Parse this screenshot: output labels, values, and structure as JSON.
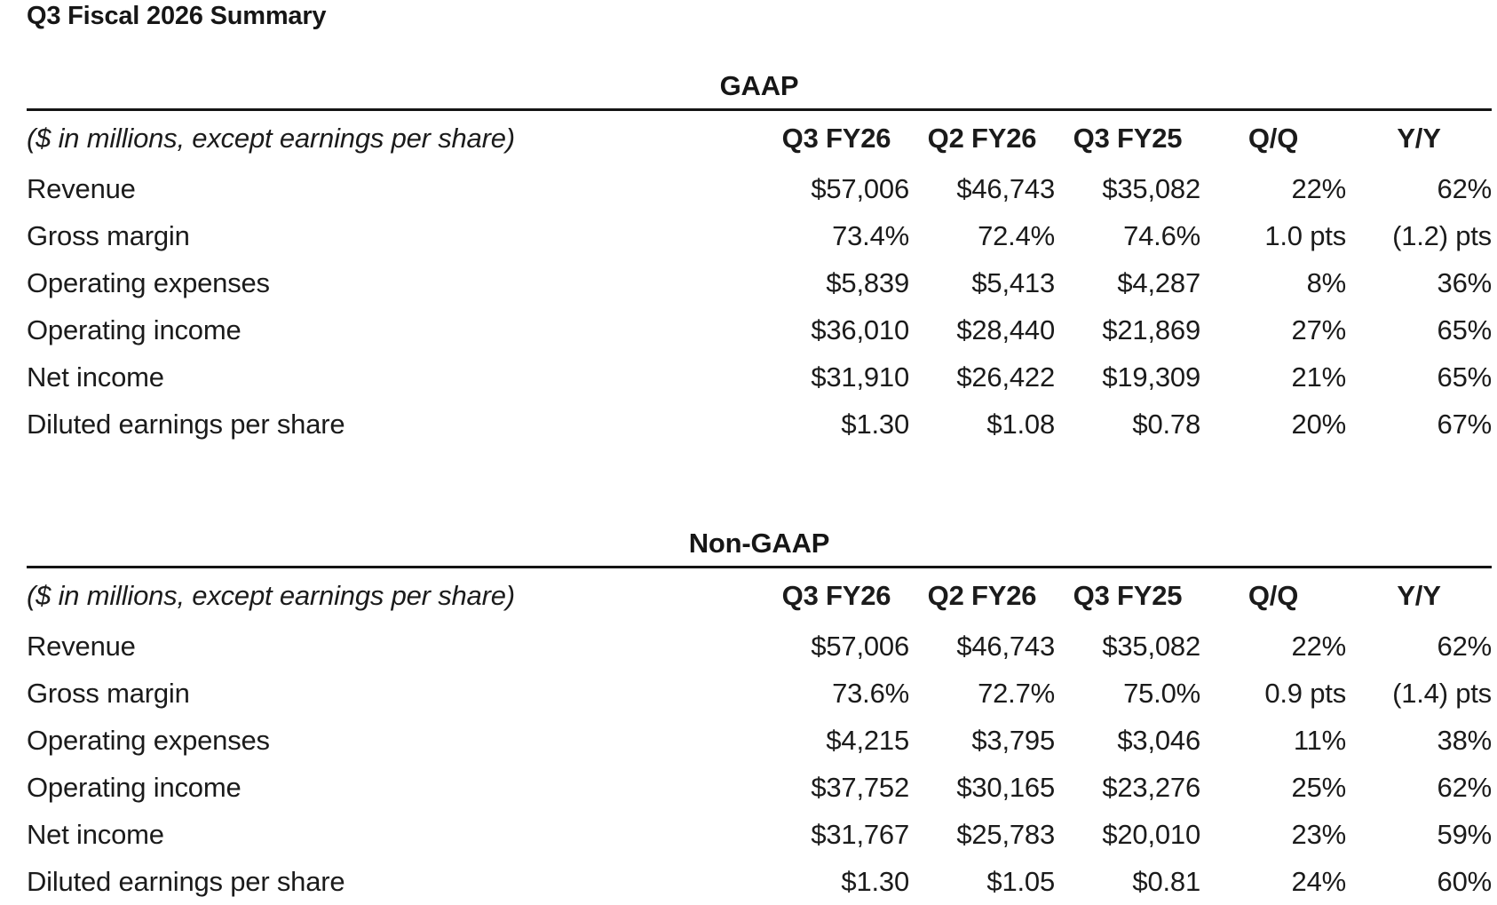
{
  "page": {
    "title": "Q3 Fiscal 2026 Summary"
  },
  "colors": {
    "background": "#ffffff",
    "text": "#1b1b1b",
    "rule": "#141414"
  },
  "tables": [
    {
      "section_title": "GAAP",
      "note": "($ in millions, except earnings per share)",
      "columns": [
        "Q3 FY26",
        "Q2 FY26",
        "Q3 FY25",
        "Q/Q",
        "Y/Y"
      ],
      "rows": [
        {
          "label": "Revenue",
          "values": [
            "$57,006",
            "$46,743",
            "$35,082",
            "22%",
            "62%"
          ]
        },
        {
          "label": "Gross margin",
          "values": [
            "73.4%",
            "72.4%",
            "74.6%",
            "1.0 pts",
            "(1.2) pts"
          ]
        },
        {
          "label": "Operating expenses",
          "values": [
            "$5,839",
            "$5,413",
            "$4,287",
            "8%",
            "36%"
          ]
        },
        {
          "label": "Operating income",
          "values": [
            "$36,010",
            "$28,440",
            "$21,869",
            "27%",
            "65%"
          ]
        },
        {
          "label": "Net income",
          "values": [
            "$31,910",
            "$26,422",
            "$19,309",
            "21%",
            "65%"
          ]
        },
        {
          "label": "Diluted earnings per share",
          "values": [
            "$1.30",
            "$1.08",
            "$0.78",
            "20%",
            "67%"
          ]
        }
      ]
    },
    {
      "section_title": "Non-GAAP",
      "note": "($ in millions, except earnings per share)",
      "columns": [
        "Q3 FY26",
        "Q2 FY26",
        "Q3 FY25",
        "Q/Q",
        "Y/Y"
      ],
      "rows": [
        {
          "label": "Revenue",
          "values": [
            "$57,006",
            "$46,743",
            "$35,082",
            "22%",
            "62%"
          ]
        },
        {
          "label": "Gross margin",
          "values": [
            "73.6%",
            "72.7%",
            "75.0%",
            "0.9 pts",
            "(1.4) pts"
          ]
        },
        {
          "label": "Operating expenses",
          "values": [
            "$4,215",
            "$3,795",
            "$3,046",
            "11%",
            "38%"
          ]
        },
        {
          "label": "Operating income",
          "values": [
            "$37,752",
            "$30,165",
            "$23,276",
            "25%",
            "62%"
          ]
        },
        {
          "label": "Net income",
          "values": [
            "$31,767",
            "$25,783",
            "$20,010",
            "23%",
            "59%"
          ]
        },
        {
          "label": "Diluted earnings per share",
          "values": [
            "$1.30",
            "$1.05",
            "$0.81",
            "24%",
            "60%"
          ]
        }
      ]
    }
  ]
}
